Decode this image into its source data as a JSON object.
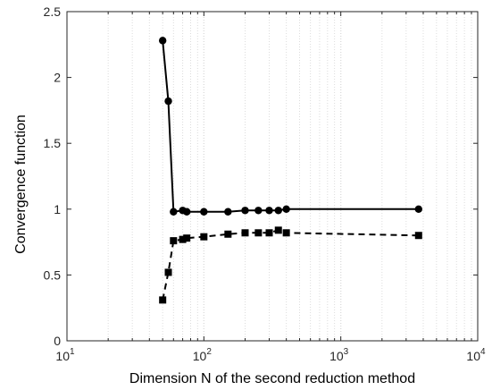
{
  "chart_data": {
    "type": "line",
    "xlabel": "Dimension N of the second reduction method",
    "ylabel": "Convergence function",
    "xscale": "log",
    "xlim": [
      10,
      10000
    ],
    "ylim": [
      0,
      2.5
    ],
    "x_ticks": [
      {
        "base": "10",
        "exp": "1"
      },
      {
        "base": "10",
        "exp": "2"
      },
      {
        "base": "10",
        "exp": "3"
      },
      {
        "base": "10",
        "exp": "4"
      }
    ],
    "y_ticks": [
      "0",
      "0.5",
      "1",
      "1.5",
      "2",
      "2.5"
    ],
    "grid": "vertical dotted minor and major",
    "series": [
      {
        "marker": "circle",
        "line_style": "solid",
        "color": "#000000",
        "x": [
          50,
          55,
          60,
          70,
          75,
          100,
          150,
          200,
          250,
          300,
          350,
          400,
          3700
        ],
        "y": [
          2.28,
          1.82,
          0.98,
          0.99,
          0.98,
          0.98,
          0.98,
          0.99,
          0.99,
          0.99,
          0.99,
          1.0,
          1.0
        ]
      },
      {
        "marker": "square",
        "line_style": "dashed",
        "color": "#000000",
        "x": [
          50,
          55,
          60,
          70,
          75,
          100,
          150,
          200,
          250,
          300,
          350,
          400,
          3700
        ],
        "y": [
          0.31,
          0.52,
          0.76,
          0.77,
          0.78,
          0.79,
          0.81,
          0.82,
          0.82,
          0.82,
          0.84,
          0.82,
          0.8
        ]
      }
    ]
  }
}
